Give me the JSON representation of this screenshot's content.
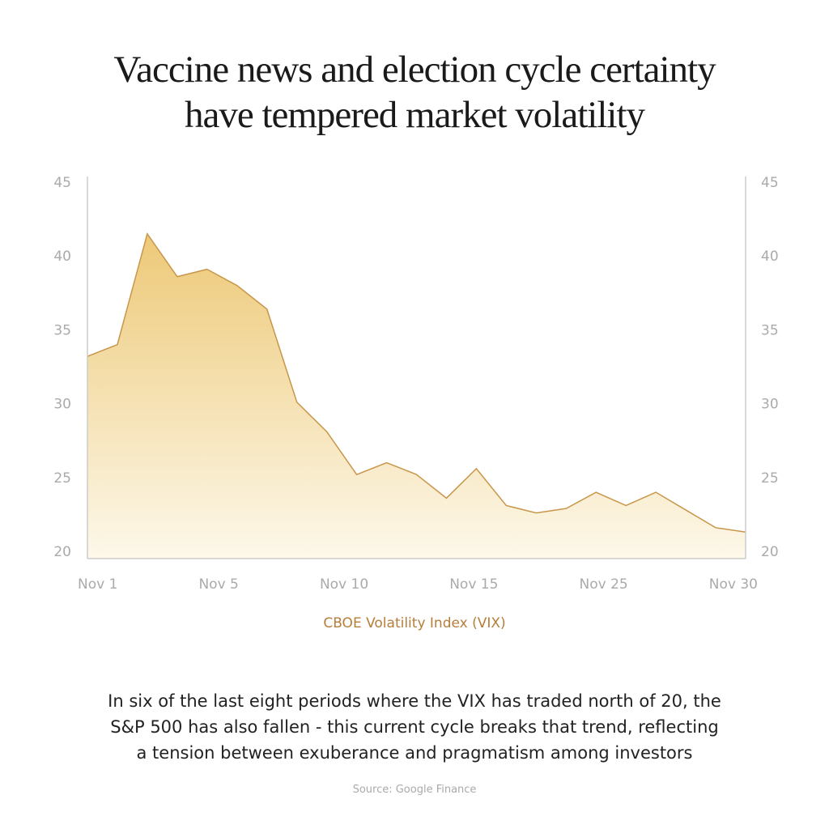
{
  "chart_data": {
    "type": "area",
    "title": "Vaccine news and election cycle certainty have tempered market volatility",
    "title_lines": [
      "Vaccine news and election cycle certainty",
      "have tempered market volatility"
    ],
    "series_label": "CBOE Volatility Index (VIX)",
    "x_tick_labels": [
      "Nov 1",
      "Nov 5",
      "Nov 10",
      "Nov 15",
      "Nov 25",
      "Nov 30"
    ],
    "y_ticks": [
      20,
      25,
      30,
      35,
      40,
      45
    ],
    "ylim": [
      20,
      45
    ],
    "y_axis": "both sides",
    "grid": false,
    "values": [
      33.2,
      34.0,
      41.5,
      38.6,
      39.1,
      38.0,
      36.4,
      30.1,
      28.1,
      25.2,
      26.0,
      25.2,
      23.6,
      25.6,
      23.1,
      22.6,
      22.9,
      24.0,
      23.1,
      24.0,
      22.8,
      21.6,
      21.3
    ],
    "colors": {
      "line": "#c8964a",
      "fill_top": "#edc978",
      "fill_bottom": "#fdf8ea",
      "axis": "#cccccc"
    }
  },
  "caption": {
    "lines": [
      "In six of the last eight periods where the VIX has traded north of 20, the",
      "S&P 500 has also fallen - this current cycle breaks that trend, reflecting",
      "a tension between exuberance and pragmatism among investors"
    ]
  },
  "source": "Source: Google Finance"
}
